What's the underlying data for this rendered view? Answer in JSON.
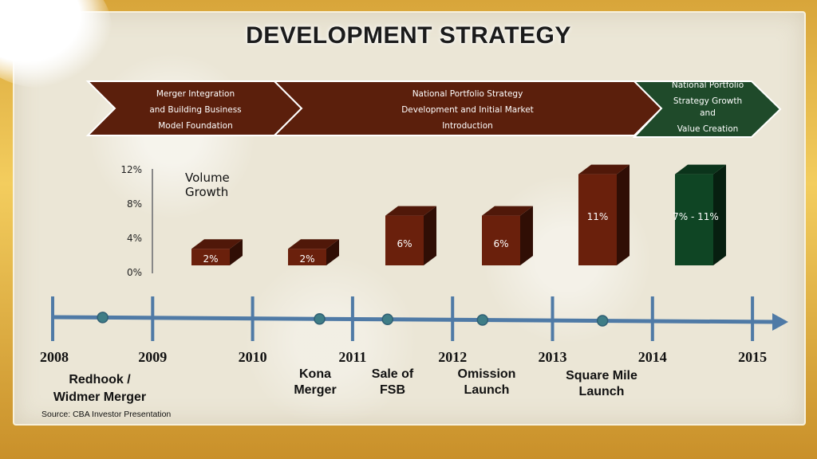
{
  "title": "DEVELOPMENT STRATEGY",
  "phases": [
    {
      "lines": [
        "Merger Integration",
        "and Building Business",
        "Model Foundation"
      ],
      "color": "#5b1f0c"
    },
    {
      "lines": [
        "National Portfolio Strategy",
        "Development and Initial Market",
        "Introduction"
      ],
      "color": "#5b1f0c"
    },
    {
      "lines": [
        "National Portfolio",
        "Strategy Growth",
        "and",
        "Value Creation"
      ],
      "color": "#1f4a2a"
    }
  ],
  "chart_data": {
    "type": "bar",
    "title": "Volume Growth",
    "y_ticks": [
      "12%",
      "8%",
      "4%",
      "0%"
    ],
    "ylim": [
      0,
      12
    ],
    "categories": [
      "2009",
      "2010",
      "2011",
      "2012",
      "2013",
      "2014"
    ],
    "values": [
      2,
      2,
      6,
      6,
      11,
      11
    ],
    "value_low": [
      null,
      null,
      null,
      null,
      null,
      7
    ],
    "labels": [
      "2%",
      "2%",
      "6%",
      "6%",
      "11%",
      "7% - 11%"
    ],
    "bar_colors": [
      "#6a200c",
      "#6a200c",
      "#6a200c",
      "#6a200c",
      "#6a200c",
      "#0f4524"
    ],
    "legend": "none",
    "grid": false
  },
  "timeline": {
    "years": [
      "2008",
      "2009",
      "2010",
      "2011",
      "2012",
      "2013",
      "2014",
      "2015"
    ],
    "events": [
      {
        "lines": [
          "Redhook /",
          "Widmer Merger"
        ],
        "at": 2008.5
      },
      {
        "lines": [
          "Kona",
          "Merger"
        ],
        "at": 2010.67
      },
      {
        "lines": [
          "Sale of",
          "FSB"
        ],
        "at": 2011.35
      },
      {
        "lines": [
          "Omission",
          "Launch"
        ],
        "at": 2012.3
      },
      {
        "lines": [
          "Square Mile",
          "Launch"
        ],
        "at": 2013.5
      }
    ]
  },
  "source": "Source: CBA Investor Presentation"
}
